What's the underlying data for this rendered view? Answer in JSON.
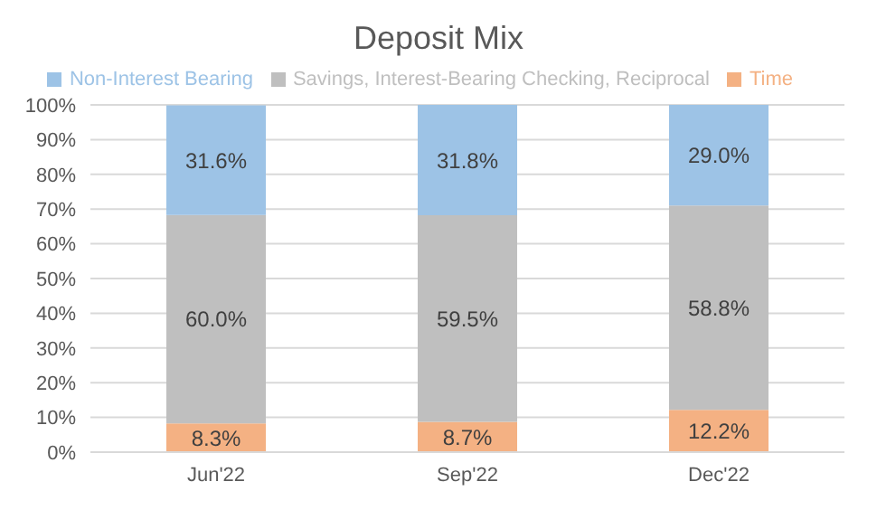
{
  "chart_data": {
    "type": "bar",
    "title": "Deposit Mix",
    "categories": [
      "Jun'22",
      "Sep'22",
      "Dec'22"
    ],
    "stacked": true,
    "series": [
      {
        "name": "Time",
        "color": "#f4b183",
        "values": [
          8.3,
          8.7,
          12.2
        ],
        "value_labels": [
          "8.3%",
          "8.7%",
          "12.2%"
        ]
      },
      {
        "name": "Savings, Interest-Bearing Checking, Reciprocal",
        "color": "#bfbfbf",
        "values": [
          60.0,
          59.5,
          58.8
        ],
        "value_labels": [
          "60.0%",
          "59.5%",
          "58.8%"
        ]
      },
      {
        "name": "Non-Interest Bearing",
        "color": "#9dc3e6",
        "values": [
          31.6,
          31.8,
          29.0
        ],
        "value_labels": [
          "31.6%",
          "31.8%",
          "29.0%"
        ]
      }
    ],
    "ylim": [
      0,
      100
    ],
    "yticks": [
      {
        "value": 0,
        "label": "0%"
      },
      {
        "value": 10,
        "label": "10%"
      },
      {
        "value": 20,
        "label": "20%"
      },
      {
        "value": 30,
        "label": "30%"
      },
      {
        "value": 40,
        "label": "40%"
      },
      {
        "value": 50,
        "label": "50%"
      },
      {
        "value": 60,
        "label": "60%"
      },
      {
        "value": 70,
        "label": "70%"
      },
      {
        "value": 80,
        "label": "80%"
      },
      {
        "value": 90,
        "label": "90%"
      },
      {
        "value": 100,
        "label": "100%"
      }
    ],
    "grid": "y",
    "legend": "top"
  }
}
